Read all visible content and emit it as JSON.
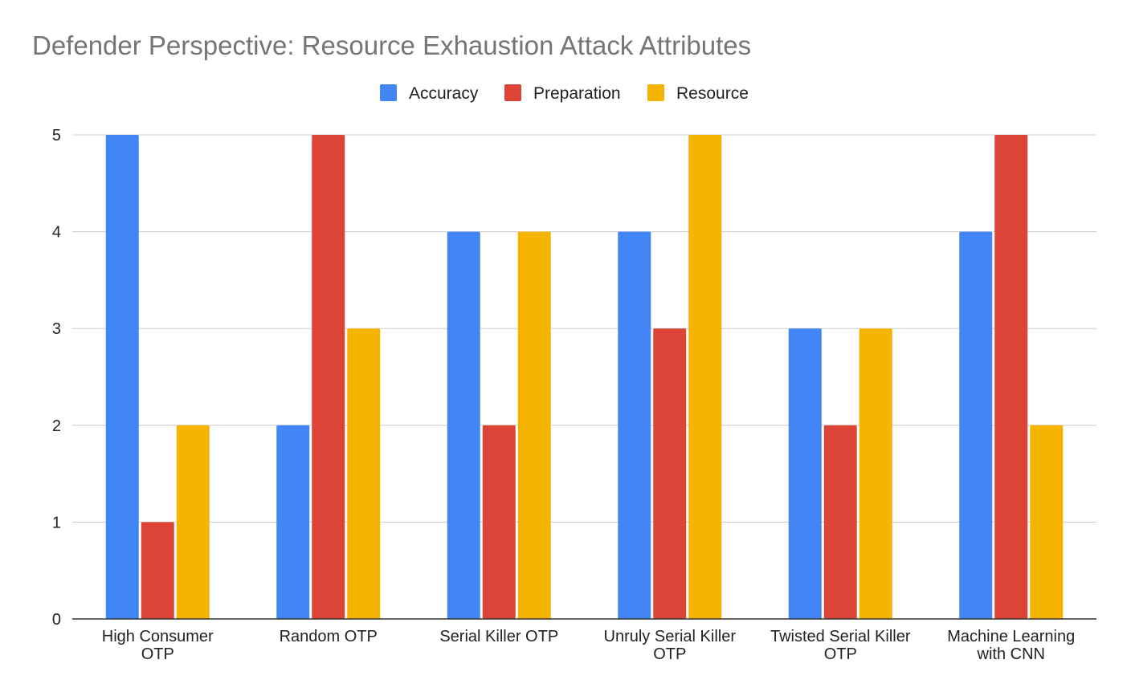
{
  "chart_data": {
    "type": "bar",
    "title": "Defender Perspective: Resource Exhaustion Attack Attributes",
    "xlabel": "",
    "ylabel": "",
    "ylim": [
      0,
      5
    ],
    "yticks": [
      "0",
      "1",
      "2",
      "3",
      "4",
      "5"
    ],
    "grid": true,
    "legend_position": "top-center",
    "categories": [
      [
        "High Consumer",
        "OTP"
      ],
      [
        "Random OTP"
      ],
      [
        "Serial Killer OTP"
      ],
      [
        "Unruly Serial Killer",
        "OTP"
      ],
      [
        "Twisted Serial Killer",
        "OTP"
      ],
      [
        "Machine Learning",
        "with CNN"
      ]
    ],
    "series": [
      {
        "name": "Accuracy",
        "color": "#4285f4",
        "values": [
          5,
          2,
          4,
          4,
          3,
          4
        ]
      },
      {
        "name": "Preparation",
        "color": "#db4437",
        "values": [
          1,
          5,
          2,
          3,
          2,
          5
        ]
      },
      {
        "name": "Resource",
        "color": "#f4b400",
        "values": [
          2,
          3,
          4,
          5,
          3,
          2
        ]
      }
    ]
  }
}
